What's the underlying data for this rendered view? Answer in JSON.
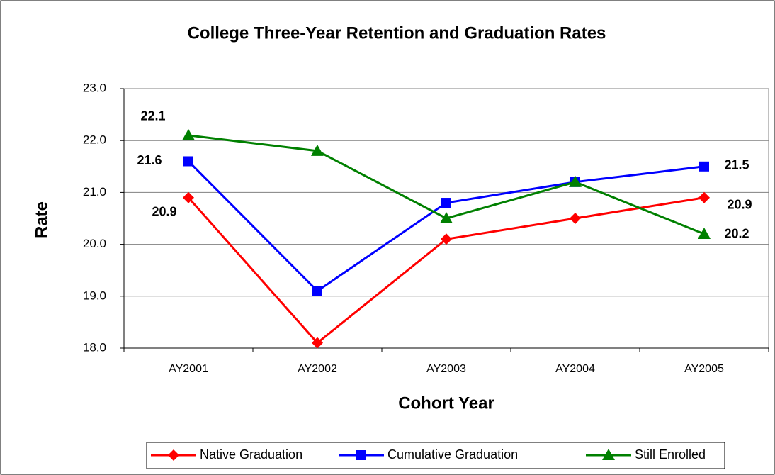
{
  "chart_data": {
    "type": "line",
    "title": "College Three-Year Retention and Graduation Rates",
    "x_label": "Cohort Year",
    "y_label": "Rate",
    "categories": [
      "AY2001",
      "AY2002",
      "AY2003",
      "AY2004",
      "AY2005"
    ],
    "series": [
      {
        "name": "Native Graduation",
        "color": "#ff0000",
        "marker": "diamond",
        "values": [
          20.9,
          18.1,
          20.1,
          20.5,
          20.9
        ],
        "value_labels": [
          "20.9",
          null,
          null,
          null,
          "20.9"
        ]
      },
      {
        "name": "Cumulative Graduation",
        "color": "#0000ff",
        "marker": "square",
        "values": [
          21.6,
          19.1,
          20.8,
          21.2,
          21.5
        ],
        "value_labels": [
          "21.6",
          null,
          null,
          null,
          "21.5"
        ]
      },
      {
        "name": "Still Enrolled",
        "color": "#008000",
        "marker": "triangle",
        "values": [
          22.1,
          21.8,
          20.5,
          21.2,
          20.2
        ],
        "value_labels": [
          "22.1",
          null,
          null,
          null,
          "20.2"
        ]
      }
    ],
    "ylim": [
      18,
      23
    ],
    "yticks": [
      {
        "value": 18,
        "label": "18.0"
      },
      {
        "value": 19,
        "label": "19.0"
      },
      {
        "value": 20,
        "label": "20.0"
      },
      {
        "value": 21,
        "label": "21.0"
      },
      {
        "value": 22,
        "label": "22.0"
      },
      {
        "value": 23,
        "label": "23.0"
      }
    ],
    "grid": true,
    "legend": "bottom"
  }
}
